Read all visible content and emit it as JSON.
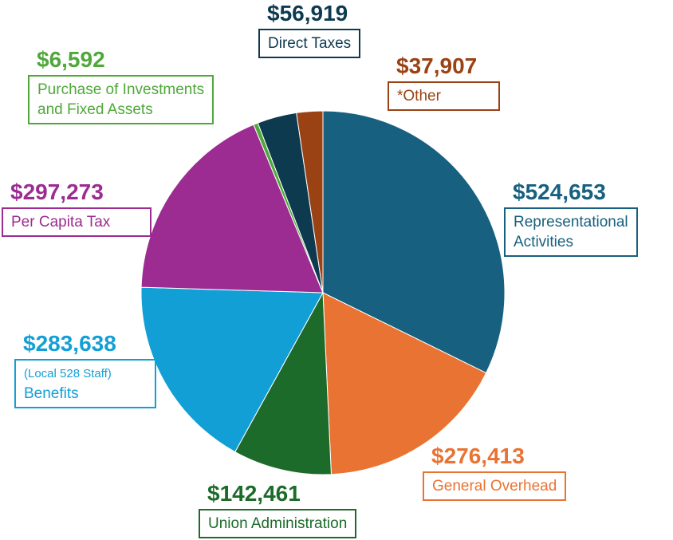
{
  "chart_data": {
    "type": "pie",
    "title": "",
    "start_angle_deg": 0,
    "direction": "clockwise",
    "slices": [
      {
        "id": "representational",
        "value": 524653,
        "value_label": "$524,653",
        "label_lines": [
          "Representational",
          "Activities"
        ],
        "color": "#17607f"
      },
      {
        "id": "overhead",
        "value": 276413,
        "value_label": "$276,413",
        "label_lines": [
          "General Overhead"
        ],
        "color": "#e97333"
      },
      {
        "id": "union-admin",
        "value": 142461,
        "value_label": "$142,461",
        "label_lines": [
          "Union Administration"
        ],
        "color": "#1c6b2a"
      },
      {
        "id": "benefits",
        "value": 283638,
        "value_label": "$283,638",
        "label_lines": [
          "(Local 528 Staff)",
          "Benefits"
        ],
        "color": "#129fd6"
      },
      {
        "id": "per-capita",
        "value": 297273,
        "value_label": "$297,273",
        "label_lines": [
          "Per Capita Tax"
        ],
        "color": "#9c2c91"
      },
      {
        "id": "purchase",
        "value": 6592,
        "value_label": "$6,592",
        "label_lines": [
          "Purchase of Investments",
          "and Fixed Assets"
        ],
        "color": "#4fa83a"
      },
      {
        "id": "direct-taxes",
        "value": 56919,
        "value_label": "$56,919",
        "label_lines": [
          "Direct Taxes"
        ],
        "color": "#0e3a50"
      },
      {
        "id": "other",
        "value": 37907,
        "value_label": "$37,907",
        "label_lines": [
          "*Other"
        ],
        "color": "#9a4214"
      }
    ]
  }
}
